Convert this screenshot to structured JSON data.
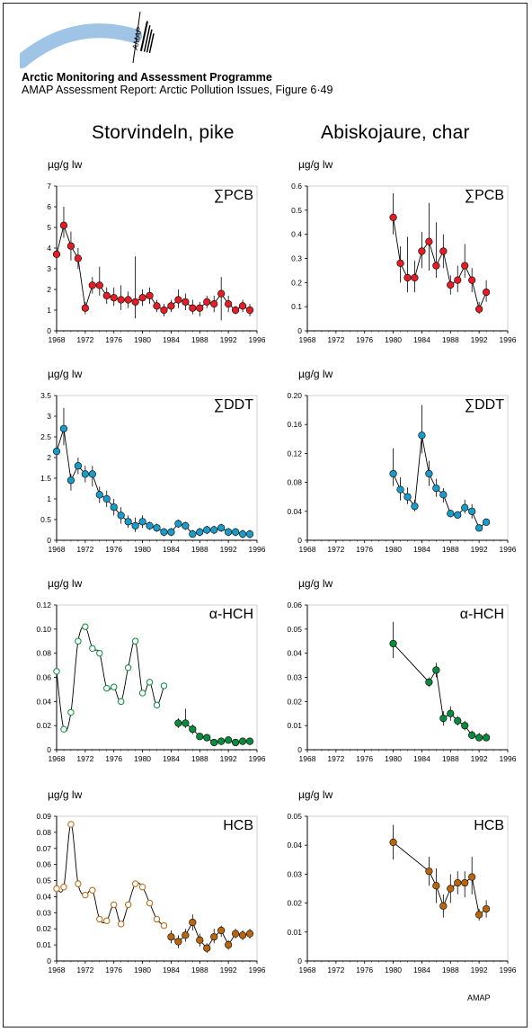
{
  "header": {
    "org_name": "Arctic Monitoring and Assessment Programme",
    "report_ref": "AMAP Assessment Report: Arctic Pollution Issues, Figure 6·49",
    "logo_text": "AMAP"
  },
  "columns": {
    "left_title": "Storvindeln, pike",
    "right_title": "Abiskojaure, char"
  },
  "footer": {
    "credit": "AMAP"
  },
  "colors": {
    "pcb": "#e41e26",
    "ddt": "#1a9bc8",
    "hch": "#0a8a3c",
    "hcb": "#b8650f",
    "logo": "#9fc4e6"
  },
  "chart_data": [
    {
      "type": "line",
      "panel": "storvindeln-pcb",
      "compound": "∑PCB",
      "ylabel": "µg/g lw",
      "ylim": [
        0,
        7
      ],
      "yticks": [
        "0",
        "1",
        "2",
        "3",
        "4",
        "5",
        "6",
        "7"
      ],
      "xlim": [
        1968,
        1996
      ],
      "xticks": [
        "1968",
        "1972",
        "1976",
        "1980",
        "1984",
        "1988",
        "1992",
        "1996"
      ],
      "series": [
        {
          "color": "#e41e26",
          "marker": "filled",
          "x": [
            1968,
            1969,
            1970,
            1971,
            1972,
            1973,
            1974,
            1975,
            1976,
            1977,
            1978,
            1979,
            1980,
            1981,
            1982,
            1983,
            1984,
            1985,
            1986,
            1987,
            1988,
            1989,
            1990,
            1991,
            1992,
            1993,
            1994,
            1995
          ],
          "y": [
            3.7,
            5.1,
            4.1,
            3.5,
            1.1,
            2.2,
            2.2,
            1.7,
            1.6,
            1.5,
            1.5,
            1.4,
            1.6,
            1.7,
            1.2,
            1.0,
            1.2,
            1.5,
            1.4,
            1.1,
            1.1,
            1.4,
            1.3,
            1.8,
            1.3,
            1.0,
            1.2,
            1.0
          ],
          "lo": [
            3.0,
            4.5,
            3.4,
            3.0,
            0.8,
            1.8,
            1.7,
            1.3,
            1.2,
            1.0,
            1.1,
            0.6,
            1.2,
            1.3,
            0.9,
            0.7,
            0.9,
            1.1,
            1.0,
            0.8,
            0.7,
            1.1,
            0.9,
            0.5,
            0.9,
            0.8,
            0.9,
            0.7
          ],
          "hi": [
            4.3,
            6.0,
            4.8,
            4.0,
            1.4,
            2.6,
            3.1,
            2.1,
            2.1,
            2.2,
            1.9,
            3.6,
            2.0,
            2.1,
            1.5,
            1.3,
            1.5,
            2.0,
            1.8,
            1.5,
            1.4,
            1.7,
            1.7,
            2.6,
            1.7,
            1.2,
            1.5,
            1.3
          ]
        }
      ]
    },
    {
      "type": "line",
      "panel": "abiskojaure-pcb",
      "compound": "∑PCB",
      "ylabel": "µg/g lw",
      "ylim": [
        0,
        0.6
      ],
      "yticks": [
        "0",
        "0.1",
        "0.2",
        "0.3",
        "0.4",
        "0.5",
        "0.6"
      ],
      "xlim": [
        1968,
        1996
      ],
      "xticks": [
        "1968",
        "1972",
        "1976",
        "1980",
        "1984",
        "1988",
        "1992",
        "1996"
      ],
      "series": [
        {
          "color": "#e41e26",
          "marker": "filled",
          "x": [
            1980,
            1981,
            1982,
            1983,
            1984,
            1985,
            1986,
            1987,
            1988,
            1989,
            1990,
            1991,
            1992,
            1993
          ],
          "y": [
            0.47,
            0.28,
            0.22,
            0.22,
            0.33,
            0.37,
            0.27,
            0.33,
            0.19,
            0.21,
            0.27,
            0.21,
            0.09,
            0.16
          ],
          "lo": [
            0.4,
            0.2,
            0.16,
            0.16,
            0.26,
            0.25,
            0.22,
            0.26,
            0.15,
            0.16,
            0.22,
            0.16,
            0.07,
            0.12
          ],
          "hi": [
            0.57,
            0.35,
            0.39,
            0.29,
            0.41,
            0.53,
            0.45,
            0.4,
            0.23,
            0.27,
            0.36,
            0.26,
            0.12,
            0.21
          ]
        }
      ]
    },
    {
      "type": "line",
      "panel": "storvindeln-ddt",
      "compound": "∑DDT",
      "ylabel": "µg/g lw",
      "ylim": [
        0,
        3.5
      ],
      "yticks": [
        "0",
        "0.5",
        "1",
        "1.5",
        "2",
        "2.5",
        "3",
        "3.5"
      ],
      "xlim": [
        1968,
        1996
      ],
      "xticks": [
        "1968",
        "1972",
        "1976",
        "1980",
        "1984",
        "1988",
        "1992",
        "1996"
      ],
      "series": [
        {
          "color": "#1a9bc8",
          "marker": "filled",
          "x": [
            1968,
            1969,
            1970,
            1971,
            1972,
            1973,
            1974,
            1975,
            1976,
            1977,
            1978,
            1979,
            1980,
            1981,
            1982,
            1983,
            1984,
            1985,
            1986,
            1987,
            1988,
            1989,
            1990,
            1991,
            1992,
            1993,
            1994,
            1995
          ],
          "y": [
            2.15,
            2.7,
            1.45,
            1.8,
            1.6,
            1.6,
            1.1,
            1.0,
            0.8,
            0.6,
            0.45,
            0.35,
            0.45,
            0.35,
            0.3,
            0.2,
            0.2,
            0.4,
            0.35,
            0.15,
            0.2,
            0.25,
            0.25,
            0.3,
            0.2,
            0.2,
            0.15,
            0.15
          ],
          "lo": [
            1.9,
            2.3,
            1.2,
            1.6,
            1.4,
            1.3,
            0.9,
            0.8,
            0.6,
            0.4,
            0.3,
            0.2,
            0.3,
            0.25,
            0.2,
            0.1,
            0.1,
            0.3,
            0.25,
            0.1,
            0.1,
            0.15,
            0.15,
            0.2,
            0.1,
            0.1,
            0.05,
            0.05
          ],
          "hi": [
            2.4,
            3.2,
            1.6,
            2.0,
            1.8,
            1.8,
            1.3,
            1.2,
            1.0,
            0.8,
            0.6,
            0.55,
            0.6,
            0.45,
            0.4,
            0.3,
            0.3,
            0.5,
            0.45,
            0.25,
            0.3,
            0.35,
            0.35,
            0.4,
            0.3,
            0.3,
            0.25,
            0.25
          ]
        }
      ]
    },
    {
      "type": "line",
      "panel": "abiskojaure-ddt",
      "compound": "∑DDT",
      "ylabel": "µg/g lw",
      "ylim": [
        0,
        0.2
      ],
      "yticks": [
        "0",
        "0.04",
        "0.08",
        "0.12",
        "0.16",
        "0.20"
      ],
      "xlim": [
        1968,
        1996
      ],
      "xticks": [
        "1968",
        "1972",
        "1976",
        "1980",
        "1984",
        "1988",
        "1992",
        "1996"
      ],
      "series": [
        {
          "color": "#1a9bc8",
          "marker": "filled",
          "x": [
            1980,
            1981,
            1982,
            1983,
            1984,
            1985,
            1986,
            1987,
            1988,
            1989,
            1990,
            1991,
            1992,
            1993
          ],
          "y": [
            0.092,
            0.07,
            0.06,
            0.047,
            0.145,
            0.092,
            0.072,
            0.063,
            0.037,
            0.035,
            0.045,
            0.04,
            0.017,
            0.025
          ],
          "lo": [
            0.075,
            0.055,
            0.05,
            0.04,
            0.12,
            0.075,
            0.06,
            0.052,
            0.032,
            0.03,
            0.037,
            0.03,
            0.013,
            0.021
          ],
          "hi": [
            0.127,
            0.087,
            0.073,
            0.056,
            0.187,
            0.11,
            0.085,
            0.072,
            0.042,
            0.04,
            0.056,
            0.05,
            0.022,
            0.03
          ]
        }
      ]
    },
    {
      "type": "line",
      "panel": "storvindeln-hch",
      "compound": "α-HCH",
      "ylabel": "µg/g lw",
      "ylim": [
        0,
        0.12
      ],
      "yticks": [
        "0",
        "0.02",
        "0.04",
        "0.06",
        "0.08",
        "0.10",
        "0.12"
      ],
      "xlim": [
        1968,
        1996
      ],
      "xticks": [
        "1968",
        "1972",
        "1976",
        "1980",
        "1984",
        "1988",
        "1992",
        "1996"
      ],
      "series": [
        {
          "color": "#0a8a3c",
          "marker": "open",
          "smooth": true,
          "x": [
            1968,
            1969,
            1970,
            1971,
            1972,
            1973,
            1974,
            1975,
            1976,
            1977,
            1978,
            1979,
            1980,
            1981,
            1982,
            1983
          ],
          "y": [
            0.065,
            0.017,
            0.031,
            0.09,
            0.102,
            0.084,
            0.08,
            0.051,
            0.052,
            0.04,
            0.068,
            0.09,
            0.047,
            0.056,
            0.037,
            0.053
          ]
        },
        {
          "color": "#0a8a3c",
          "marker": "filled",
          "x": [
            1985,
            1986,
            1987,
            1988,
            1989,
            1990,
            1991,
            1992,
            1993,
            1994,
            1995
          ],
          "y": [
            0.022,
            0.022,
            0.017,
            0.011,
            0.01,
            0.006,
            0.007,
            0.008,
            0.006,
            0.007,
            0.007
          ],
          "lo": [
            0.018,
            0.018,
            0.013,
            0.008,
            0.007,
            0.004,
            0.005,
            0.006,
            0.004,
            0.005,
            0.005
          ],
          "hi": [
            0.026,
            0.034,
            0.021,
            0.014,
            0.013,
            0.009,
            0.01,
            0.01,
            0.008,
            0.009,
            0.009
          ]
        }
      ]
    },
    {
      "type": "line",
      "panel": "abiskojaure-hch",
      "compound": "α-HCH",
      "ylabel": "µg/g lw",
      "ylim": [
        0,
        0.06
      ],
      "yticks": [
        "0",
        "0.01",
        "0.02",
        "0.03",
        "0.04",
        "0.05",
        "0.06"
      ],
      "xlim": [
        1968,
        1996
      ],
      "xticks": [
        "1968",
        "1972",
        "1976",
        "1980",
        "1984",
        "1988",
        "1992",
        "1996"
      ],
      "series": [
        {
          "color": "#0a8a3c",
          "marker": "filled",
          "x": [
            1980,
            1985,
            1986,
            1987,
            1988,
            1989,
            1990,
            1991,
            1992,
            1993
          ],
          "y": [
            0.044,
            0.028,
            0.033,
            0.013,
            0.015,
            0.012,
            0.01,
            0.006,
            0.005,
            0.005
          ],
          "lo": [
            0.038,
            0.026,
            0.03,
            0.01,
            0.012,
            0.01,
            0.008,
            0.005,
            0.004,
            0.004
          ],
          "hi": [
            0.053,
            0.03,
            0.036,
            0.016,
            0.018,
            0.014,
            0.012,
            0.008,
            0.007,
            0.007
          ]
        }
      ]
    },
    {
      "type": "line",
      "panel": "storvindeln-hcb",
      "compound": "HCB",
      "ylabel": "µg/g lw",
      "ylim": [
        0,
        0.09
      ],
      "yticks": [
        "0",
        "0.01",
        "0.02",
        "0.03",
        "0.04",
        "0.05",
        "0.06",
        "0.07",
        "0.08",
        "0.09"
      ],
      "xlim": [
        1968,
        1996
      ],
      "xticks": [
        "1968",
        "1972",
        "1976",
        "1980",
        "1984",
        "1988",
        "1992",
        "1996"
      ],
      "series": [
        {
          "color": "#b8650f",
          "marker": "open",
          "smooth": true,
          "x": [
            1968,
            1969,
            1970,
            1971,
            1972,
            1973,
            1974,
            1975,
            1976,
            1977,
            1978,
            1979,
            1980,
            1981,
            1982,
            1983
          ],
          "y": [
            0.045,
            0.046,
            0.085,
            0.048,
            0.041,
            0.044,
            0.026,
            0.025,
            0.035,
            0.023,
            0.035,
            0.048,
            0.046,
            0.036,
            0.026,
            0.022
          ]
        },
        {
          "color": "#b8650f",
          "marker": "filled",
          "x": [
            1984,
            1985,
            1986,
            1987,
            1988,
            1989,
            1990,
            1991,
            1992,
            1993,
            1994,
            1995
          ],
          "y": [
            0.015,
            0.012,
            0.016,
            0.024,
            0.013,
            0.008,
            0.015,
            0.019,
            0.01,
            0.017,
            0.016,
            0.017
          ],
          "lo": [
            0.011,
            0.008,
            0.012,
            0.019,
            0.009,
            0.005,
            0.011,
            0.015,
            0.007,
            0.014,
            0.013,
            0.014
          ],
          "hi": [
            0.019,
            0.016,
            0.02,
            0.029,
            0.017,
            0.011,
            0.02,
            0.022,
            0.013,
            0.02,
            0.019,
            0.02
          ]
        }
      ]
    },
    {
      "type": "line",
      "panel": "abiskojaure-hcb",
      "compound": "HCB",
      "ylabel": "µg/g lw",
      "ylim": [
        0,
        0.05
      ],
      "yticks": [
        "0",
        "0.01",
        "0.02",
        "0.03",
        "0.04",
        "0.05"
      ],
      "xlim": [
        1968,
        1996
      ],
      "xticks": [
        "1968",
        "1972",
        "1976",
        "1980",
        "1984",
        "1988",
        "1992",
        "1996"
      ],
      "series": [
        {
          "color": "#b8650f",
          "marker": "filled",
          "x": [
            1980,
            1985,
            1986,
            1987,
            1988,
            1989,
            1990,
            1991,
            1992,
            1993
          ],
          "y": [
            0.041,
            0.031,
            0.026,
            0.019,
            0.025,
            0.027,
            0.027,
            0.029,
            0.016,
            0.018
          ],
          "lo": [
            0.035,
            0.026,
            0.02,
            0.015,
            0.02,
            0.023,
            0.022,
            0.023,
            0.014,
            0.015
          ],
          "hi": [
            0.047,
            0.036,
            0.032,
            0.023,
            0.03,
            0.031,
            0.031,
            0.036,
            0.018,
            0.021
          ]
        }
      ]
    }
  ]
}
